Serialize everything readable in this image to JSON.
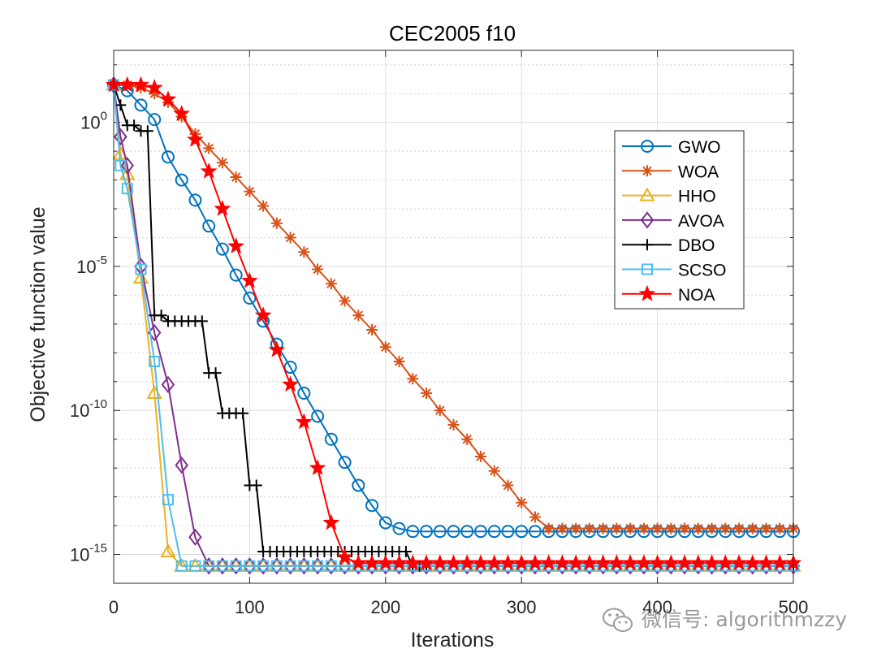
{
  "chart_data": {
    "type": "line",
    "title": "CEC2005 f10",
    "xlabel": "Iterations",
    "ylabel": "Objective function value",
    "xlim": [
      0,
      500
    ],
    "ylim_log10": [
      -16,
      2.5
    ],
    "yscale": "log",
    "grid": true,
    "legend_location": "top-right",
    "x_ticks": [
      {
        "value": 0,
        "label": "0"
      },
      {
        "value": 100,
        "label": "100"
      },
      {
        "value": 200,
        "label": "200"
      },
      {
        "value": 300,
        "label": "300"
      },
      {
        "value": 400,
        "label": "400"
      },
      {
        "value": 500,
        "label": "500"
      }
    ],
    "y_ticks": [
      {
        "exp": 0,
        "base": "10",
        "sup": "0"
      },
      {
        "exp": -5,
        "base": "10",
        "sup": "-5"
      },
      {
        "exp": -10,
        "base": "10",
        "sup": "-10"
      },
      {
        "exp": -15,
        "base": "10",
        "sup": "-15"
      }
    ],
    "x": [
      0,
      10,
      20,
      30,
      40,
      50,
      60,
      70,
      80,
      90,
      100,
      110,
      120,
      130,
      140,
      150,
      160,
      170,
      180,
      190,
      200,
      210,
      220,
      230,
      240,
      250,
      260,
      270,
      280,
      290,
      300,
      310,
      320,
      330,
      340,
      350,
      360,
      370,
      380,
      390,
      400,
      410,
      420,
      430,
      440,
      450,
      460,
      470,
      480,
      490,
      500
    ],
    "series": [
      {
        "name": "GWO",
        "color": "#0072BD",
        "marker": "circle",
        "log10_values": [
          1.3,
          1.1,
          0.6,
          0.1,
          -1.2,
          -2.0,
          -2.7,
          -3.6,
          -4.4,
          -5.3,
          -6.1,
          -6.9,
          -7.7,
          -8.5,
          -9.4,
          -10.2,
          -11.0,
          -11.8,
          -12.6,
          -13.3,
          -13.9,
          -14.1,
          -14.2,
          -14.2,
          -14.2,
          -14.2,
          -14.2,
          -14.2,
          -14.2,
          -14.2,
          -14.2,
          -14.2,
          -14.2,
          -14.2,
          -14.2,
          -14.2,
          -14.2,
          -14.2,
          -14.2,
          -14.2,
          -14.2,
          -14.2,
          -14.2,
          -14.2,
          -14.2,
          -14.2,
          -14.2,
          -14.2,
          -14.2,
          -14.2,
          -14.2
        ]
      },
      {
        "name": "WOA",
        "color": "#D95319",
        "marker": "asterisk",
        "log10_values": [
          1.3,
          1.3,
          1.2,
          1.0,
          0.7,
          0.2,
          -0.4,
          -0.9,
          -1.4,
          -1.9,
          -2.4,
          -2.9,
          -3.5,
          -4.0,
          -4.5,
          -5.1,
          -5.6,
          -6.2,
          -6.7,
          -7.2,
          -7.8,
          -8.3,
          -8.9,
          -9.4,
          -10.0,
          -10.5,
          -11.0,
          -11.6,
          -12.1,
          -12.6,
          -13.2,
          -13.7,
          -14.1,
          -14.1,
          -14.1,
          -14.1,
          -14.1,
          -14.1,
          -14.1,
          -14.1,
          -14.1,
          -14.1,
          -14.1,
          -14.1,
          -14.1,
          -14.1,
          -14.1,
          -14.1,
          -14.1,
          -14.1,
          -14.1
        ]
      },
      {
        "name": "HHO",
        "color": "#EDB120",
        "marker": "triangle",
        "x": [
          0,
          5,
          10,
          20,
          30,
          40,
          50,
          60,
          70,
          80,
          90,
          100,
          110,
          120,
          130,
          140,
          150,
          160,
          170,
          180,
          190,
          200,
          210,
          220,
          230,
          240,
          250,
          260,
          270,
          280,
          290,
          300,
          310,
          320,
          330,
          340,
          350,
          360,
          370,
          380,
          390,
          400,
          410,
          420,
          430,
          440,
          450,
          460,
          470,
          480,
          490,
          500
        ],
        "log10_values": [
          1.3,
          -1.1,
          -1.8,
          -5.4,
          -9.4,
          -14.9,
          -15.4,
          -15.4,
          -15.4,
          -15.4,
          -15.4,
          -15.4,
          -15.4,
          -15.4,
          -15.4,
          -15.4,
          -15.4,
          -15.4,
          -15.4,
          -15.4,
          -15.4,
          -15.4,
          -15.4,
          -15.4,
          -15.4,
          -15.4,
          -15.4,
          -15.4,
          -15.4,
          -15.4,
          -15.4,
          -15.4,
          -15.4,
          -15.4,
          -15.4,
          -15.4,
          -15.4,
          -15.4,
          -15.4,
          -15.4,
          -15.4,
          -15.4,
          -15.4,
          -15.4,
          -15.4,
          -15.4,
          -15.4,
          -15.4,
          -15.4,
          -15.4,
          -15.4,
          -15.4
        ]
      },
      {
        "name": "AVOA",
        "color": "#7E2F8E",
        "marker": "diamond",
        "x": [
          0,
          5,
          10,
          20,
          30,
          40,
          50,
          60,
          70,
          80,
          90,
          100,
          110,
          120,
          130,
          140,
          150,
          160,
          170,
          180,
          190,
          200,
          210,
          220,
          230,
          240,
          250,
          260,
          270,
          280,
          290,
          300,
          310,
          320,
          330,
          340,
          350,
          360,
          370,
          380,
          390,
          400,
          410,
          420,
          430,
          440,
          450,
          460,
          470,
          480,
          490,
          500
        ],
        "log10_values": [
          1.3,
          -0.5,
          -1.5,
          -5.0,
          -7.3,
          -9.1,
          -11.9,
          -14.4,
          -15.4,
          -15.4,
          -15.4,
          -15.4,
          -15.4,
          -15.4,
          -15.4,
          -15.4,
          -15.4,
          -15.4,
          -15.4,
          -15.4,
          -15.4,
          -15.4,
          -15.4,
          -15.4,
          -15.4,
          -15.4,
          -15.4,
          -15.4,
          -15.4,
          -15.4,
          -15.4,
          -15.4,
          -15.4,
          -15.4,
          -15.4,
          -15.4,
          -15.4,
          -15.4,
          -15.4,
          -15.4,
          -15.4,
          -15.4,
          -15.4,
          -15.4,
          -15.4,
          -15.4,
          -15.4,
          -15.4,
          -15.4,
          -15.4,
          -15.4,
          -15.4
        ]
      },
      {
        "name": "DBO",
        "color": "#000000",
        "marker": "plus",
        "x": [
          0,
          5,
          10,
          15,
          20,
          25,
          30,
          35,
          40,
          45,
          50,
          55,
          60,
          65,
          70,
          75,
          80,
          85,
          90,
          95,
          100,
          105,
          110,
          115,
          120,
          125,
          130,
          135,
          140,
          145,
          150,
          155,
          160,
          165,
          170,
          175,
          180,
          185,
          190,
          195,
          200,
          205,
          210,
          215,
          220,
          225,
          230,
          500
        ],
        "log10_values": [
          1.3,
          0.6,
          -0.1,
          -0.1,
          -0.3,
          -0.3,
          -6.7,
          -6.7,
          -6.9,
          -6.9,
          -6.9,
          -6.9,
          -6.9,
          -6.9,
          -8.7,
          -8.7,
          -10.1,
          -10.1,
          -10.1,
          -10.1,
          -12.6,
          -12.6,
          -14.9,
          -14.9,
          -14.9,
          -14.9,
          -14.9,
          -14.9,
          -14.9,
          -14.9,
          -14.9,
          -14.9,
          -14.9,
          -14.9,
          -14.9,
          -14.9,
          -14.9,
          -14.9,
          -14.9,
          -14.9,
          -14.9,
          -14.9,
          -14.9,
          -14.9,
          -15.4,
          -15.4,
          -15.4,
          -15.4
        ]
      },
      {
        "name": "SCSO",
        "color": "#4DBEEE",
        "marker": "square",
        "x": [
          0,
          5,
          10,
          20,
          30,
          40,
          50,
          60,
          70,
          80,
          90,
          100,
          110,
          120,
          130,
          140,
          150,
          160,
          170,
          180,
          190,
          200,
          210,
          220,
          230,
          240,
          250,
          260,
          270,
          280,
          290,
          300,
          310,
          320,
          330,
          340,
          350,
          360,
          370,
          380,
          390,
          400,
          410,
          420,
          430,
          440,
          450,
          460,
          470,
          480,
          490,
          500
        ],
        "log10_values": [
          1.3,
          -1.5,
          -2.3,
          -5.1,
          -8.3,
          -13.1,
          -15.4,
          -15.4,
          -15.4,
          -15.4,
          -15.4,
          -15.4,
          -15.4,
          -15.4,
          -15.4,
          -15.4,
          -15.4,
          -15.4,
          -15.4,
          -15.4,
          -15.4,
          -15.4,
          -15.4,
          -15.4,
          -15.4,
          -15.4,
          -15.4,
          -15.4,
          -15.4,
          -15.4,
          -15.4,
          -15.4,
          -15.4,
          -15.4,
          -15.4,
          -15.4,
          -15.4,
          -15.4,
          -15.4,
          -15.4,
          -15.4,
          -15.4,
          -15.4,
          -15.4,
          -15.4,
          -15.4,
          -15.4,
          -15.4,
          -15.4,
          -15.4,
          -15.4,
          -15.4
        ]
      },
      {
        "name": "NOA",
        "color": "#FF0000",
        "marker": "star",
        "log10_values": [
          1.3,
          1.3,
          1.3,
          1.2,
          0.8,
          0.3,
          -0.6,
          -1.7,
          -3.0,
          -4.3,
          -5.5,
          -6.7,
          -7.9,
          -9.1,
          -10.4,
          -12.0,
          -13.9,
          -15.1,
          -15.3,
          -15.3,
          -15.3,
          -15.3,
          -15.3,
          -15.3,
          -15.3,
          -15.3,
          -15.3,
          -15.3,
          -15.3,
          -15.3,
          -15.3,
          -15.3,
          -15.3,
          -15.3,
          -15.3,
          -15.3,
          -15.3,
          -15.3,
          -15.3,
          -15.3,
          -15.3,
          -15.3,
          -15.3,
          -15.3,
          -15.3,
          -15.3,
          -15.3,
          -15.3,
          -15.3,
          -15.3,
          -15.3
        ]
      }
    ]
  },
  "watermark": {
    "text": "微信号: algorithmzzy",
    "icon": "wechat-logo-icon"
  }
}
